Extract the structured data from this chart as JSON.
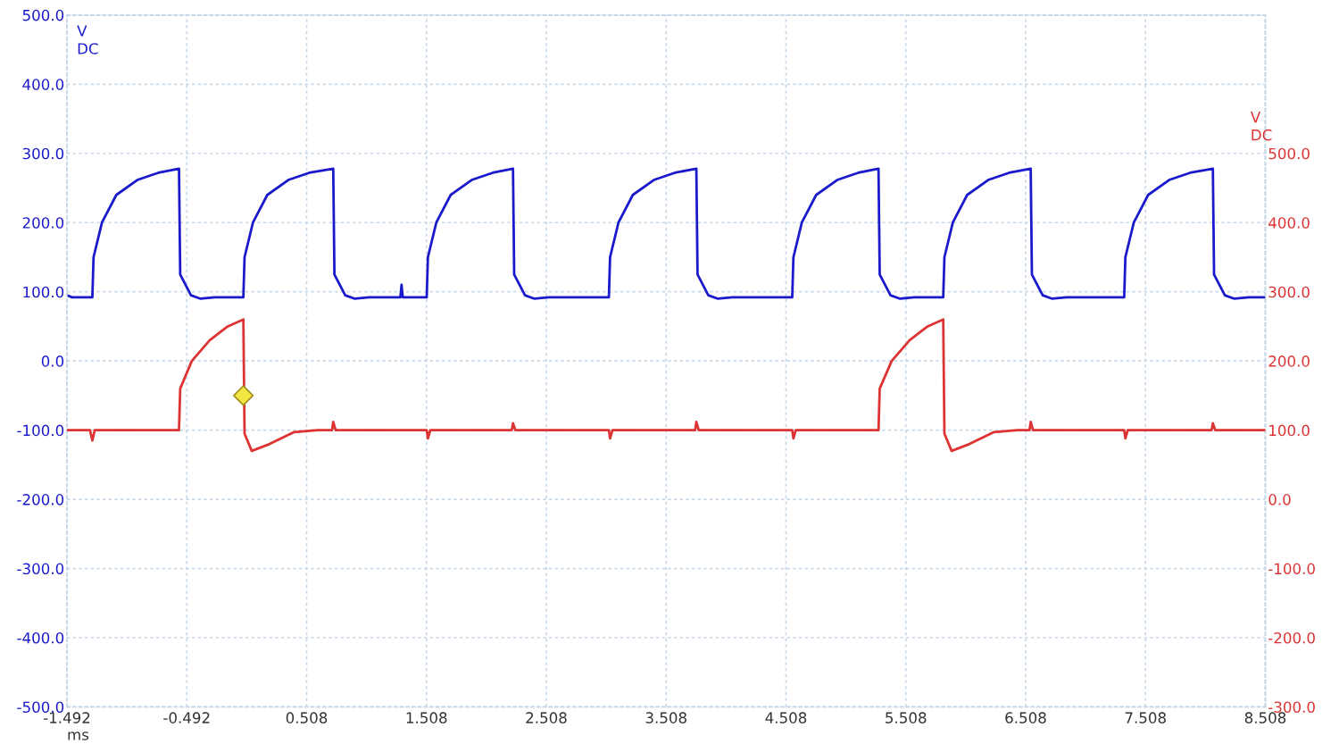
{
  "chart_data": {
    "type": "line",
    "xlabel": "ms",
    "ylabel": "V\nDC",
    "y2label": "V\nDC",
    "grid": true,
    "line_style": "solid",
    "marker": "none",
    "xlim": [
      -1.492,
      8.508
    ],
    "xticks": [
      {
        "value": -1.492,
        "label": "-1.492"
      },
      {
        "value": -0.492,
        "label": "-0.492"
      },
      {
        "value": 0.508,
        "label": "0.508"
      },
      {
        "value": 1.508,
        "label": "1.508"
      },
      {
        "value": 2.508,
        "label": "2.508"
      },
      {
        "value": 3.508,
        "label": "3.508"
      },
      {
        "value": 4.508,
        "label": "4.508"
      },
      {
        "value": 5.508,
        "label": "5.508"
      },
      {
        "value": 6.508,
        "label": "6.508"
      },
      {
        "value": 7.508,
        "label": "7.508"
      },
      {
        "value": 8.508,
        "label": "8.508"
      }
    ],
    "ylim": [
      -500,
      500
    ],
    "yticks": [
      {
        "value": 500,
        "label": "500.0"
      },
      {
        "value": 400,
        "label": "400.0"
      },
      {
        "value": 300,
        "label": "300.0"
      },
      {
        "value": 200,
        "label": "200.0"
      },
      {
        "value": 100,
        "label": "100.0"
      },
      {
        "value": 0,
        "label": "0.0"
      },
      {
        "value": -100,
        "label": "-100.0"
      },
      {
        "value": -200,
        "label": "-200.0"
      },
      {
        "value": -300,
        "label": "-300.0"
      },
      {
        "value": -400,
        "label": "-400.0"
      },
      {
        "value": -500,
        "label": "-500.0"
      }
    ],
    "y2lim": [
      -300,
      700
    ],
    "y2ticks": [
      {
        "value": 500,
        "label": "500.0"
      },
      {
        "value": 400,
        "label": "400.0"
      },
      {
        "value": 300,
        "label": "300.0"
      },
      {
        "value": 200,
        "label": "200.0"
      },
      {
        "value": 100,
        "label": "100.0"
      },
      {
        "value": 0,
        "label": "0.0"
      },
      {
        "value": -100,
        "label": "-100.0"
      },
      {
        "value": -200,
        "label": "-200.0"
      },
      {
        "value": -300,
        "label": "-300.0"
      }
    ],
    "series": [
      {
        "color": "#1a1acc",
        "x": [
          -1.492,
          -1.45,
          -1.28,
          -1.27,
          -1.2,
          -1.08,
          -0.9,
          -0.73,
          -0.557,
          -0.547,
          -0.457,
          -0.377,
          -0.257,
          -0.02,
          -0.01,
          0.06,
          0.18,
          0.36,
          0.53,
          0.73,
          0.74,
          0.83,
          0.91,
          1.03,
          1.29,
          1.3,
          1.31,
          1.51,
          1.52,
          1.59,
          1.71,
          1.89,
          2.06,
          2.23,
          2.24,
          2.33,
          2.41,
          2.53,
          3.03,
          3.04,
          3.11,
          3.23,
          3.41,
          3.58,
          3.76,
          3.77,
          3.86,
          3.94,
          4.06,
          4.56,
          4.57,
          4.64,
          4.76,
          4.94,
          5.11,
          5.28,
          5.29,
          5.38,
          5.46,
          5.58,
          5.82,
          5.83,
          5.9,
          6.02,
          6.2,
          6.37,
          6.55,
          6.56,
          6.65,
          6.73,
          6.85,
          7.33,
          7.34,
          7.41,
          7.53,
          7.71,
          7.88,
          8.07,
          8.08,
          8.17,
          8.25,
          8.37,
          8.508
        ],
        "values": [
          95,
          92,
          92,
          150,
          200,
          240,
          262,
          272,
          278,
          125,
          95,
          90,
          92,
          92,
          150,
          200,
          240,
          262,
          272,
          278,
          125,
          95,
          90,
          92,
          92,
          110,
          92,
          92,
          150,
          200,
          240,
          262,
          272,
          278,
          125,
          95,
          90,
          92,
          92,
          150,
          200,
          240,
          262,
          272,
          278,
          125,
          95,
          90,
          92,
          92,
          150,
          200,
          240,
          262,
          272,
          278,
          125,
          95,
          90,
          92,
          92,
          150,
          200,
          240,
          262,
          272,
          278,
          125,
          95,
          90,
          92,
          92,
          150,
          200,
          240,
          262,
          272,
          278,
          125,
          95,
          90,
          92,
          92
        ]
      },
      {
        "color": "#dd3333",
        "axis": "y2",
        "x": [
          -1.492,
          -1.3,
          -1.28,
          -1.26,
          -0.557,
          -0.547,
          -0.45,
          -0.3,
          -0.15,
          -0.02,
          -0.01,
          0.05,
          0.2,
          0.4,
          0.6,
          0.72,
          0.73,
          0.75,
          1.51,
          1.52,
          1.54,
          2.22,
          2.23,
          2.25,
          3.03,
          3.04,
          3.06,
          3.75,
          3.76,
          3.78,
          4.56,
          4.57,
          4.59,
          5.28,
          5.29,
          5.39,
          5.54,
          5.69,
          5.82,
          5.83,
          5.89,
          6.04,
          6.24,
          6.44,
          6.54,
          6.55,
          6.57,
          7.33,
          7.34,
          7.36,
          8.06,
          8.07,
          8.09,
          8.508
        ],
        "values": [
          100,
          100,
          85,
          100,
          100,
          160,
          200,
          230,
          250,
          260,
          95,
          70,
          80,
          97,
          100,
          100,
          112,
          100,
          100,
          88,
          100,
          100,
          110,
          100,
          100,
          88,
          100,
          100,
          112,
          100,
          100,
          88,
          100,
          100,
          160,
          200,
          230,
          250,
          260,
          95,
          70,
          80,
          97,
          100,
          100,
          112,
          100,
          100,
          88,
          100,
          100,
          110,
          100,
          100
        ]
      },
      {
        "type": "scatter",
        "marker": "diamond",
        "color": "#f2e640",
        "axis": "y2",
        "x": [
          -0.02
        ],
        "values": [
          150
        ]
      }
    ]
  }
}
